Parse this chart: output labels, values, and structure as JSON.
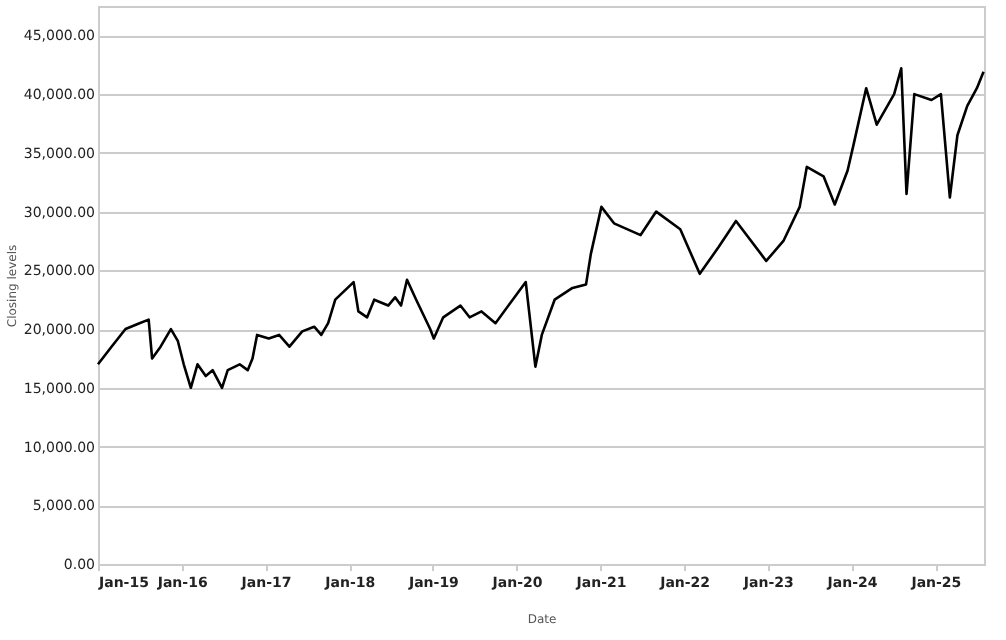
{
  "chart_data": {
    "type": "line",
    "xlabel": "Date",
    "ylabel": "Closing levels",
    "x": [
      "2015-01-01",
      "2015-03-01",
      "2015-05-01",
      "2015-07-01",
      "2015-08-10",
      "2015-08-25",
      "2015-10-01",
      "2015-11-15",
      "2015-12-15",
      "2016-01-10",
      "2016-02-10",
      "2016-03-10",
      "2016-04-15",
      "2016-05-15",
      "2016-06-25",
      "2016-07-20",
      "2016-09-10",
      "2016-10-15",
      "2016-11-05",
      "2016-11-25",
      "2017-01-15",
      "2017-03-01",
      "2017-04-15",
      "2017-06-10",
      "2017-08-01",
      "2017-09-01",
      "2017-10-01",
      "2017-11-01",
      "2018-01-20",
      "2018-02-10",
      "2018-03-20",
      "2018-04-20",
      "2018-06-20",
      "2018-07-20",
      "2018-08-15",
      "2018-09-10",
      "2018-10-20",
      "2018-12-20",
      "2019-01-05",
      "2019-02-15",
      "2019-05-01",
      "2019-06-10",
      "2019-08-01",
      "2019-10-01",
      "2019-12-15",
      "2020-02-10",
      "2020-03-23",
      "2020-04-20",
      "2020-06-15",
      "2020-09-01",
      "2020-10-30",
      "2020-11-20",
      "2021-01-05",
      "2021-03-01",
      "2021-06-25",
      "2021-09-01",
      "2021-12-15",
      "2022-03-10",
      "2022-06-01",
      "2022-08-15",
      "2022-12-25",
      "2023-03-10",
      "2023-05-20",
      "2023-06-20",
      "2023-09-01",
      "2023-10-20",
      "2023-12-15",
      "2024-01-10",
      "2024-03-05",
      "2024-04-20",
      "2024-07-05",
      "2024-08-05",
      "2024-08-28",
      "2024-10-01",
      "2024-12-15",
      "2025-01-25",
      "2025-03-05",
      "2025-04-07",
      "2025-05-20",
      "2025-07-01",
      "2025-07-30"
    ],
    "series": [
      {
        "color": "#000000",
        "values": [
          17000,
          18500,
          20000,
          20500,
          20800,
          17500,
          18500,
          20000,
          19000,
          17000,
          15000,
          17000,
          16000,
          16500,
          15000,
          16500,
          17000,
          16500,
          17500,
          19500,
          19200,
          19500,
          18500,
          19800,
          20200,
          19500,
          20500,
          22500,
          24000,
          21500,
          21000,
          22500,
          22000,
          22700,
          22000,
          24200,
          22500,
          20000,
          19200,
          21000,
          22000,
          21000,
          21500,
          20500,
          22500,
          24000,
          16800,
          19500,
          22500,
          23500,
          23800,
          26400,
          30400,
          29000,
          28000,
          30000,
          28500,
          24700,
          27000,
          29200,
          25800,
          27500,
          30400,
          33800,
          33000,
          30600,
          33500,
          35700,
          40500,
          37400,
          40000,
          42200,
          31500,
          40000,
          39500,
          40000,
          31200,
          36500,
          39000,
          40500,
          41900
        ]
      }
    ],
    "xlim": [
      "2015-01-01",
      "2025-08-01"
    ],
    "xticks": [
      {
        "value": "2015-01-01",
        "label": "Jan-15"
      },
      {
        "value": "2016-01-01",
        "label": "Jan-16"
      },
      {
        "value": "2017-01-01",
        "label": "Jan-17"
      },
      {
        "value": "2018-01-01",
        "label": "Jan-18"
      },
      {
        "value": "2019-01-01",
        "label": "Jan-19"
      },
      {
        "value": "2020-01-01",
        "label": "Jan-20"
      },
      {
        "value": "2021-01-01",
        "label": "Jan-21"
      },
      {
        "value": "2022-01-01",
        "label": "Jan-22"
      },
      {
        "value": "2023-01-01",
        "label": "Jan-23"
      },
      {
        "value": "2024-01-01",
        "label": "Jan-24"
      },
      {
        "value": "2025-01-01",
        "label": "Jan-25"
      }
    ],
    "ylim": [
      0,
      47500
    ],
    "yticks": [
      {
        "value": 0,
        "label": "0.00"
      },
      {
        "value": 5000,
        "label": "5,000.00"
      },
      {
        "value": 10000,
        "label": "10,000.00"
      },
      {
        "value": 15000,
        "label": "15,000.00"
      },
      {
        "value": 20000,
        "label": "20,000.00"
      },
      {
        "value": 25000,
        "label": "25,000.00"
      },
      {
        "value": 30000,
        "label": "30,000.00"
      },
      {
        "value": 35000,
        "label": "35,000.00"
      },
      {
        "value": 40000,
        "label": "40,000.00"
      },
      {
        "value": 45000,
        "label": "45,000.00"
      }
    ],
    "grid": "y",
    "marker": "none",
    "line_style": "solid"
  }
}
